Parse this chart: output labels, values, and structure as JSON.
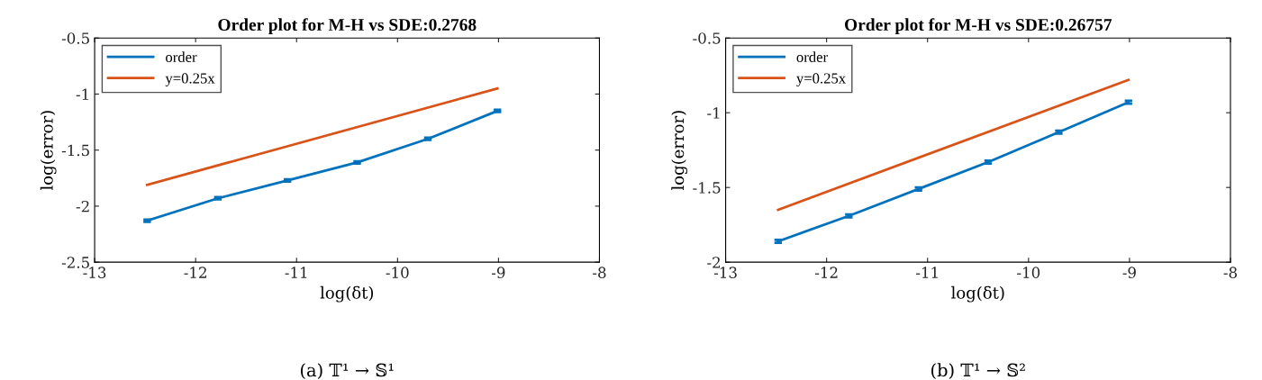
{
  "chart_data": [
    {
      "type": "line",
      "title": "Order plot for M-H vs SDE:0.2768",
      "xlabel": "log(δt)",
      "ylabel": "log(error)",
      "annotations": [
        "(a) 𝕋¹ → 𝕊¹"
      ],
      "xlim": [
        -13,
        -8
      ],
      "xticks": [
        -13,
        -12,
        -11,
        -10,
        -9,
        -8
      ],
      "ylim": [
        -2.5,
        -0.5
      ],
      "yticks": [
        -2.5,
        -2,
        -1.5,
        -1,
        -0.5
      ],
      "grid": false,
      "legend": "top left",
      "marker": "none",
      "line_style": "solid",
      "series": [
        {
          "name": "order",
          "color": "#0072bd",
          "x": [
            -12.48,
            -11.78,
            -11.09,
            -10.4,
            -9.7,
            -9.01
          ],
          "values": [
            -2.13,
            -1.93,
            -1.77,
            -1.61,
            -1.4,
            -1.15
          ],
          "errors": [
            0.01,
            0.01,
            0.01,
            0.01,
            0.01,
            0.01
          ]
        },
        {
          "name": "y=0.25x",
          "color": "#d95319",
          "x": [
            -12.48,
            -9.01
          ],
          "values": [
            -1.81,
            -0.95
          ]
        }
      ]
    },
    {
      "type": "line",
      "title": "Order plot for M-H vs SDE:0.26757",
      "xlabel": "log(δt)",
      "ylabel": "log(error)",
      "annotations": [
        "(b) 𝕋¹ → 𝕊²"
      ],
      "xlim": [
        -13,
        -8
      ],
      "xticks": [
        -13,
        -12,
        -11,
        -10,
        -9,
        -8
      ],
      "ylim": [
        -2,
        -0.5
      ],
      "yticks": [
        -2,
        -1.5,
        -1,
        -0.5
      ],
      "grid": false,
      "legend": "top left",
      "marker": "none",
      "line_style": "solid",
      "series": [
        {
          "name": "order",
          "color": "#0072bd",
          "x": [
            -12.48,
            -11.78,
            -11.09,
            -10.4,
            -9.7,
            -9.01
          ],
          "values": [
            -1.86,
            -1.69,
            -1.51,
            -1.33,
            -1.13,
            -0.93
          ],
          "errors": [
            0.01,
            0.01,
            0.01,
            0.01,
            0.01,
            0.01
          ]
        },
        {
          "name": "y=0.25x",
          "color": "#d95319",
          "x": [
            -12.48,
            -9.01
          ],
          "values": [
            -1.65,
            -0.78
          ]
        }
      ]
    }
  ]
}
